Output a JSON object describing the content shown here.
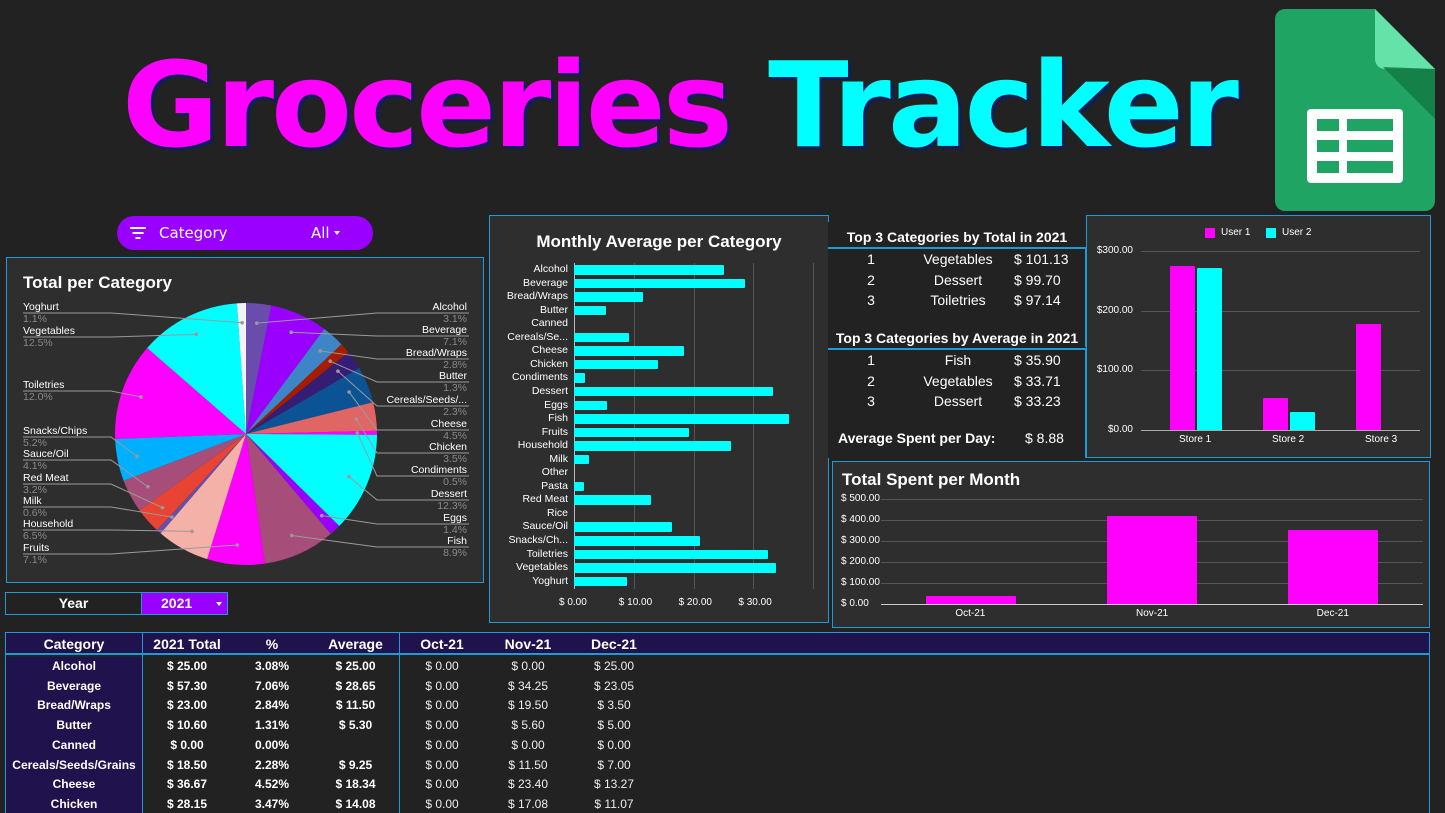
{
  "header": {
    "title_word1": "Groceries",
    "title_word2": "Tracker",
    "logo": "google-sheets-icon"
  },
  "filter": {
    "icon": "filter-icon",
    "label": "Category",
    "value": "All"
  },
  "year_selector": {
    "label": "Year",
    "value": "2021"
  },
  "colors": {
    "background": "#222222",
    "panel": "#2e2e2e",
    "border": "#1e9bd7",
    "magenta": "#ff00ff",
    "cyan": "#00ffff",
    "violet": "#9900ff",
    "table_header": "#20124d"
  },
  "top3": {
    "by_total_title": "Top 3 Categories by Total in 2021",
    "by_total": [
      {
        "rank": "1",
        "name": "Vegetables",
        "value": "$ 101.13"
      },
      {
        "rank": "2",
        "name": "Dessert",
        "value": "$ 99.70"
      },
      {
        "rank": "3",
        "name": "Toiletries",
        "value": "$ 97.14"
      }
    ],
    "by_average_title": "Top 3 Categories by Average in 2021",
    "by_average": [
      {
        "rank": "1",
        "name": "Fish",
        "value": "$ 35.90"
      },
      {
        "rank": "2",
        "name": "Vegetables",
        "value": "$ 33.71"
      },
      {
        "rank": "3",
        "name": "Dessert",
        "value": "$ 33.23"
      }
    ],
    "avg_per_day_label": "Average Spent per Day:",
    "avg_per_day_value": "$ 8.88"
  },
  "table": {
    "headers": [
      "Category",
      "2021 Total",
      "%",
      "Average",
      "Oct-21",
      "Nov-21",
      "Dec-21"
    ],
    "rows": [
      [
        "Alcohol",
        "$ 25.00",
        "3.08%",
        "$ 25.00",
        "$ 0.00",
        "$ 0.00",
        "$ 25.00"
      ],
      [
        "Beverage",
        "$ 57.30",
        "7.06%",
        "$ 28.65",
        "$ 0.00",
        "$ 34.25",
        "$ 23.05"
      ],
      [
        "Bread/Wraps",
        "$ 23.00",
        "2.84%",
        "$ 11.50",
        "$ 0.00",
        "$ 19.50",
        "$ 3.50"
      ],
      [
        "Butter",
        "$ 10.60",
        "1.31%",
        "$ 5.30",
        "$ 0.00",
        "$ 5.60",
        "$ 5.00"
      ],
      [
        "Canned",
        "$ 0.00",
        "0.00%",
        "",
        "$ 0.00",
        "$ 0.00",
        "$ 0.00"
      ],
      [
        "Cereals/Seeds/Grains",
        "$ 18.50",
        "2.28%",
        "$ 9.25",
        "$ 0.00",
        "$ 11.50",
        "$ 7.00"
      ],
      [
        "Cheese",
        "$ 36.67",
        "4.52%",
        "$ 18.34",
        "$ 0.00",
        "$ 23.40",
        "$ 13.27"
      ],
      [
        "Chicken",
        "$ 28.15",
        "3.47%",
        "$ 14.08",
        "$ 0.00",
        "$ 17.08",
        "$ 11.07"
      ]
    ]
  },
  "chart_data": [
    {
      "type": "pie",
      "title": "Total per Category",
      "categories": [
        "Alcohol",
        "Beverage",
        "Bread/Wraps",
        "Butter",
        "Cereals/Seeds/...",
        "Cheese",
        "Chicken",
        "Condiments",
        "Dessert",
        "Eggs",
        "Fish",
        "Fruits",
        "Household",
        "Milk",
        "Red Meat",
        "Sauce/Oil",
        "Snacks/Chips",
        "Toiletries",
        "Vegetables",
        "Yoghurt"
      ],
      "values": [
        3.1,
        7.1,
        2.8,
        1.3,
        2.3,
        4.5,
        3.5,
        0.5,
        12.3,
        1.4,
        8.9,
        7.1,
        6.5,
        0.6,
        3.2,
        4.1,
        5.2,
        12.0,
        12.5,
        1.1
      ],
      "labels": [
        "3.1%",
        "7.1%",
        "2.8%",
        "1.3%",
        "2.3%",
        "4.5%",
        "3.5%",
        "0.5%",
        "12.3%",
        "1.4%",
        "8.9%",
        "7.1%",
        "6.5%",
        "0.6%",
        "3.2%",
        "4.1%",
        "5.2%",
        "12.0%",
        "12.5%",
        "1.1%"
      ],
      "colors": [
        "#6a4cad",
        "#9900ff",
        "#3d85c6",
        "#a61c00",
        "#351c75",
        "#0b5394",
        "#e06666",
        "#ff00ff",
        "#00ffff",
        "#9900ff",
        "#a64d79",
        "#ff00ff",
        "#f4b1a8",
        "#674ea7",
        "#e84333",
        "#a64d79",
        "#00b0ff",
        "#ff00ff",
        "#00ffff",
        "#f3f3f3"
      ],
      "legend_position": "labeled"
    },
    {
      "type": "bar",
      "orientation": "horizontal",
      "title": "Monthly Average per Category",
      "categories": [
        "Alcohol",
        "Beverage",
        "Bread/Wraps",
        "Butter",
        "Canned",
        "Cereals/Se...",
        "Cheese",
        "Chicken",
        "Condiments",
        "Dessert",
        "Eggs",
        "Fish",
        "Fruits",
        "Household",
        "Milk",
        "Other",
        "Pasta",
        "Red Meat",
        "Rice",
        "Sauce/Oil",
        "Snacks/Ch...",
        "Toiletries",
        "Vegetables",
        "Yoghurt"
      ],
      "values": [
        25.0,
        28.65,
        11.5,
        5.3,
        0,
        9.25,
        18.34,
        14.08,
        1.9,
        33.23,
        5.5,
        35.9,
        19.2,
        26.2,
        2.5,
        0,
        1.7,
        12.9,
        0,
        16.4,
        21.1,
        32.38,
        33.71,
        8.9
      ],
      "xlabel": "",
      "ylabel": "",
      "xlim": [
        0,
        40
      ],
      "xticks": [
        "$ 0.00",
        "$ 10.00",
        "$ 20.00",
        "$ 30.00"
      ],
      "color": "#00ffff",
      "grid": true
    },
    {
      "type": "bar",
      "title": "",
      "categories": [
        "Store 1",
        "Store 2",
        "Store 3"
      ],
      "series": [
        {
          "name": "User 1",
          "color": "#ff00ff",
          "values": [
            275,
            53,
            178
          ]
        },
        {
          "name": "User 2",
          "color": "#00ffff",
          "values": [
            271,
            30,
            0
          ]
        }
      ],
      "ylim": [
        0,
        300
      ],
      "yticks": [
        "$0.00",
        "$100.00",
        "$200.00",
        "$300.00"
      ],
      "legend_position": "top",
      "grid": true
    },
    {
      "type": "bar",
      "title": "Total Spent per Month",
      "categories": [
        "Oct-21",
        "Nov-21",
        "Dec-21"
      ],
      "values": [
        36,
        420,
        351
      ],
      "ylim": [
        0,
        500
      ],
      "yticks": [
        "$ 0.00",
        "$ 100.00",
        "$ 200.00",
        "$ 300.00",
        "$ 400.00",
        "$ 500.00"
      ],
      "color": "#ff00ff",
      "grid": true
    }
  ]
}
